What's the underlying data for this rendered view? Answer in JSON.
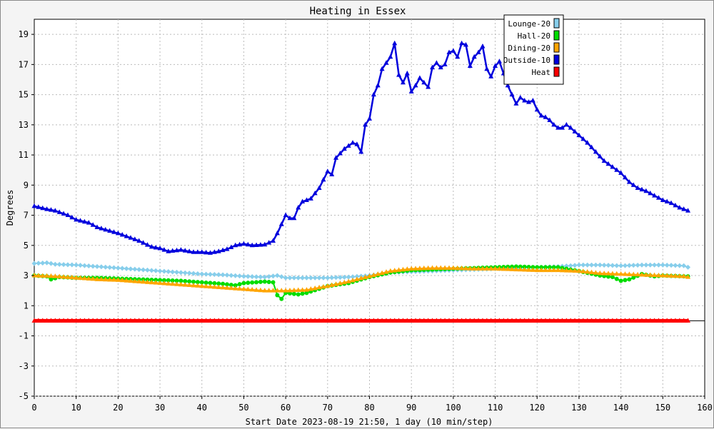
{
  "chart_data": {
    "type": "line",
    "title": "Heating in Essex",
    "xlabel": "Start Date 2023-08-19 21:50, 1 day (10 min/step)",
    "ylabel": "Degrees",
    "xlim": [
      0,
      160
    ],
    "ylim": [
      -5,
      20
    ],
    "x_ticks": [
      0,
      10,
      20,
      30,
      40,
      50,
      60,
      70,
      80,
      90,
      100,
      110,
      120,
      130,
      140,
      150,
      160
    ],
    "y_ticks": [
      -5,
      -3,
      -1,
      1,
      3,
      5,
      7,
      9,
      11,
      13,
      15,
      17,
      19
    ],
    "grid": true,
    "legend_position": "top-right",
    "series": [
      {
        "name": "Lounge-20",
        "color": "#87ceeb",
        "marker": "diamond",
        "points": [
          [
            0,
            3.8
          ],
          [
            3,
            3.85
          ],
          [
            5,
            3.75
          ],
          [
            10,
            3.7
          ],
          [
            15,
            3.6
          ],
          [
            20,
            3.5
          ],
          [
            25,
            3.4
          ],
          [
            30,
            3.3
          ],
          [
            35,
            3.2
          ],
          [
            40,
            3.1
          ],
          [
            45,
            3.05
          ],
          [
            50,
            2.95
          ],
          [
            55,
            2.9
          ],
          [
            58,
            3.0
          ],
          [
            60,
            2.85
          ],
          [
            65,
            2.85
          ],
          [
            70,
            2.85
          ],
          [
            75,
            2.9
          ],
          [
            80,
            3.0
          ],
          [
            85,
            3.2
          ],
          [
            90,
            3.25
          ],
          [
            95,
            3.3
          ],
          [
            100,
            3.35
          ],
          [
            105,
            3.4
          ],
          [
            110,
            3.45
          ],
          [
            115,
            3.5
          ],
          [
            120,
            3.55
          ],
          [
            125,
            3.6
          ],
          [
            128,
            3.65
          ],
          [
            130,
            3.7
          ],
          [
            135,
            3.7
          ],
          [
            140,
            3.65
          ],
          [
            145,
            3.7
          ],
          [
            150,
            3.7
          ],
          [
            155,
            3.65
          ],
          [
            156,
            3.55
          ]
        ]
      },
      {
        "name": "Hall-20",
        "color": "#00dd00",
        "marker": "circle",
        "points": [
          [
            0,
            3.0
          ],
          [
            3,
            2.95
          ],
          [
            4,
            2.75
          ],
          [
            6,
            2.9
          ],
          [
            10,
            2.85
          ],
          [
            15,
            2.85
          ],
          [
            20,
            2.8
          ],
          [
            25,
            2.75
          ],
          [
            30,
            2.7
          ],
          [
            35,
            2.65
          ],
          [
            40,
            2.55
          ],
          [
            45,
            2.45
          ],
          [
            48,
            2.35
          ],
          [
            50,
            2.5
          ],
          [
            55,
            2.6
          ],
          [
            57,
            2.55
          ],
          [
            58,
            1.7
          ],
          [
            59,
            1.45
          ],
          [
            60,
            1.85
          ],
          [
            63,
            1.75
          ],
          [
            65,
            1.85
          ],
          [
            70,
            2.3
          ],
          [
            75,
            2.5
          ],
          [
            80,
            2.9
          ],
          [
            85,
            3.2
          ],
          [
            90,
            3.35
          ],
          [
            95,
            3.4
          ],
          [
            100,
            3.45
          ],
          [
            105,
            3.5
          ],
          [
            110,
            3.55
          ],
          [
            115,
            3.6
          ],
          [
            120,
            3.55
          ],
          [
            125,
            3.55
          ],
          [
            130,
            3.3
          ],
          [
            135,
            3.0
          ],
          [
            138,
            2.9
          ],
          [
            140,
            2.65
          ],
          [
            142,
            2.75
          ],
          [
            145,
            3.1
          ],
          [
            148,
            2.95
          ],
          [
            150,
            3.0
          ],
          [
            155,
            2.95
          ],
          [
            156,
            2.95
          ]
        ]
      },
      {
        "name": "Dining-20",
        "color": "#ffa500",
        "marker": "triangle",
        "points": [
          [
            0,
            3.0
          ],
          [
            5,
            2.95
          ],
          [
            10,
            2.85
          ],
          [
            15,
            2.75
          ],
          [
            20,
            2.7
          ],
          [
            25,
            2.6
          ],
          [
            30,
            2.5
          ],
          [
            35,
            2.4
          ],
          [
            40,
            2.3
          ],
          [
            45,
            2.2
          ],
          [
            50,
            2.1
          ],
          [
            55,
            2.0
          ],
          [
            60,
            2.0
          ],
          [
            65,
            2.05
          ],
          [
            70,
            2.3
          ],
          [
            75,
            2.6
          ],
          [
            80,
            2.95
          ],
          [
            85,
            3.3
          ],
          [
            90,
            3.45
          ],
          [
            95,
            3.5
          ],
          [
            100,
            3.5
          ],
          [
            105,
            3.45
          ],
          [
            110,
            3.45
          ],
          [
            115,
            3.4
          ],
          [
            120,
            3.35
          ],
          [
            125,
            3.35
          ],
          [
            130,
            3.3
          ],
          [
            135,
            3.15
          ],
          [
            140,
            3.1
          ],
          [
            145,
            3.05
          ],
          [
            150,
            3.0
          ],
          [
            155,
            2.95
          ],
          [
            156,
            2.9
          ]
        ]
      },
      {
        "name": "Outside-10",
        "color": "#0000dd",
        "marker": "triangle",
        "points": [
          [
            0,
            7.6
          ],
          [
            3,
            7.4
          ],
          [
            5,
            7.3
          ],
          [
            8,
            7.0
          ],
          [
            10,
            6.7
          ],
          [
            13,
            6.5
          ],
          [
            15,
            6.2
          ],
          [
            20,
            5.8
          ],
          [
            25,
            5.3
          ],
          [
            28,
            4.9
          ],
          [
            30,
            4.8
          ],
          [
            32,
            4.6
          ],
          [
            35,
            4.7
          ],
          [
            38,
            4.55
          ],
          [
            40,
            4.55
          ],
          [
            42,
            4.5
          ],
          [
            44,
            4.6
          ],
          [
            46,
            4.75
          ],
          [
            48,
            5.0
          ],
          [
            50,
            5.1
          ],
          [
            52,
            5.0
          ],
          [
            55,
            5.05
          ],
          [
            57,
            5.3
          ],
          [
            58,
            5.8
          ],
          [
            59,
            6.4
          ],
          [
            60,
            7.0
          ],
          [
            61,
            6.8
          ],
          [
            62,
            6.8
          ],
          [
            63,
            7.5
          ],
          [
            64,
            7.9
          ],
          [
            66,
            8.1
          ],
          [
            68,
            8.8
          ],
          [
            70,
            9.9
          ],
          [
            71,
            9.7
          ],
          [
            72,
            10.8
          ],
          [
            74,
            11.4
          ],
          [
            76,
            11.8
          ],
          [
            77,
            11.7
          ],
          [
            78,
            11.2
          ],
          [
            79,
            13.0
          ],
          [
            80,
            13.4
          ],
          [
            81,
            15.0
          ],
          [
            82,
            15.6
          ],
          [
            83,
            16.7
          ],
          [
            84,
            17.1
          ],
          [
            85,
            17.5
          ],
          [
            86,
            18.4
          ],
          [
            87,
            16.3
          ],
          [
            88,
            15.8
          ],
          [
            89,
            16.4
          ],
          [
            90,
            15.2
          ],
          [
            91,
            15.6
          ],
          [
            92,
            16.1
          ],
          [
            93,
            15.8
          ],
          [
            94,
            15.5
          ],
          [
            95,
            16.8
          ],
          [
            96,
            17.1
          ],
          [
            97,
            16.8
          ],
          [
            98,
            17.0
          ],
          [
            99,
            17.8
          ],
          [
            100,
            17.9
          ],
          [
            101,
            17.5
          ],
          [
            102,
            18.4
          ],
          [
            103,
            18.3
          ],
          [
            104,
            16.9
          ],
          [
            105,
            17.5
          ],
          [
            106,
            17.8
          ],
          [
            107,
            18.2
          ],
          [
            108,
            16.7
          ],
          [
            109,
            16.2
          ],
          [
            110,
            16.9
          ],
          [
            111,
            17.2
          ],
          [
            112,
            16.4
          ],
          [
            113,
            15.6
          ],
          [
            114,
            15.0
          ],
          [
            115,
            14.4
          ],
          [
            116,
            14.8
          ],
          [
            117,
            14.6
          ],
          [
            118,
            14.5
          ],
          [
            119,
            14.6
          ],
          [
            120,
            14.0
          ],
          [
            121,
            13.6
          ],
          [
            122,
            13.5
          ],
          [
            123,
            13.3
          ],
          [
            124,
            13.0
          ],
          [
            125,
            12.8
          ],
          [
            126,
            12.8
          ],
          [
            127,
            13.0
          ],
          [
            128,
            12.8
          ],
          [
            130,
            12.3
          ],
          [
            132,
            11.8
          ],
          [
            134,
            11.2
          ],
          [
            136,
            10.6
          ],
          [
            138,
            10.2
          ],
          [
            140,
            9.8
          ],
          [
            142,
            9.2
          ],
          [
            144,
            8.8
          ],
          [
            146,
            8.6
          ],
          [
            148,
            8.3
          ],
          [
            150,
            8.0
          ],
          [
            152,
            7.8
          ],
          [
            154,
            7.5
          ],
          [
            156,
            7.3
          ]
        ]
      },
      {
        "name": "Heat",
        "color": "#ff0000",
        "marker": "triangle",
        "points": [
          [
            0,
            0.0
          ],
          [
            156,
            0.0
          ]
        ]
      }
    ]
  }
}
